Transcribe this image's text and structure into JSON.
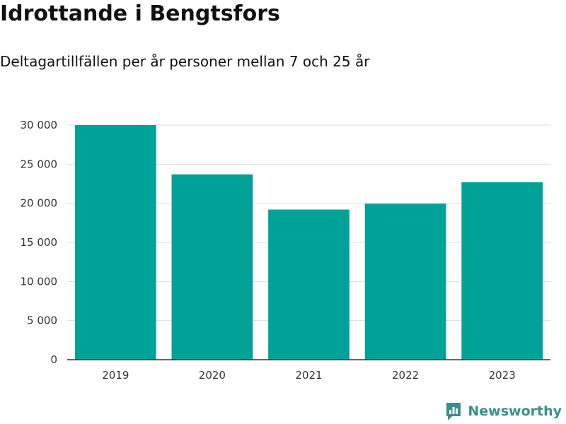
{
  "title": "Idrottande i Bengtsfors",
  "subtitle": "Deltagartillfällen per år personer mellan 7 och 25 år",
  "brand": {
    "name": "Newsworthy",
    "icon": "newsworthy-logo-icon",
    "color": "#3a8f8a"
  },
  "chart_data": {
    "type": "bar",
    "title": "Idrottande i Bengtsfors",
    "subtitle": "Deltagartillfällen per år personer mellan 7 och 25 år",
    "categories": [
      "2019",
      "2020",
      "2021",
      "2022",
      "2023"
    ],
    "values": [
      30000,
      23700,
      19200,
      19950,
      22700
    ],
    "ylim": [
      0,
      30000
    ],
    "yticks": [
      0,
      5000,
      10000,
      15000,
      20000,
      25000,
      30000
    ],
    "ytick_labels": [
      "0",
      "5 000",
      "10 000",
      "15 000",
      "20 000",
      "25 000",
      "30 000"
    ],
    "grid": true,
    "legend": "none",
    "bar_color": "#00a298"
  }
}
